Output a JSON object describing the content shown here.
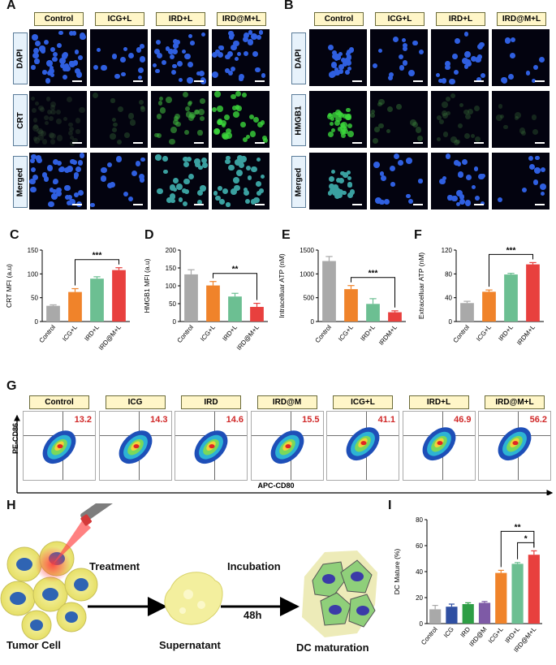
{
  "panels": {
    "A": {
      "letter": "A",
      "headers": [
        "Control",
        "ICG+L",
        "IRD+L",
        "IRD@M+L"
      ],
      "rows": [
        "DAPI",
        "CRT",
        "Merged"
      ]
    },
    "B": {
      "letter": "B",
      "headers": [
        "Control",
        "ICG+L",
        "IRD+L",
        "IRD@M+L"
      ],
      "rows": [
        "DAPI",
        "HMGB1",
        "Merged"
      ]
    },
    "G": {
      "letter": "G",
      "headers": [
        "Control",
        "ICG",
        "IRD",
        "IRD@M",
        "ICG+L",
        "IRD+L",
        "IRD@M+L"
      ],
      "values": [
        "13.2",
        "14.3",
        "14.6",
        "15.5",
        "41.1",
        "46.9",
        "56.2"
      ],
      "ylabel": "PE-CD86",
      "xlabel": "APC-CD80"
    },
    "H": {
      "letter": "H",
      "treatment": "Treatment",
      "incubation": "Incubation",
      "time": "48h",
      "tumor_cell": "Tumor Cell",
      "supernatant": "Supernatant",
      "dc_maturation": "DC maturation"
    }
  },
  "chart_data": [
    {
      "id": "C",
      "letter": "C",
      "type": "bar",
      "ylabel": "CRT MFI (a.u)",
      "categories": [
        "Control",
        "ICG+L",
        "IRD+L",
        "IRD@M+L"
      ],
      "values": [
        33,
        62,
        90,
        108
      ],
      "errors": [
        2,
        7,
        4,
        5
      ],
      "ylim": [
        0,
        150
      ],
      "yticks": [
        "0",
        "50",
        "100",
        "150"
      ],
      "colors": [
        "#a9a9a9",
        "#f0832a",
        "#6cbf92",
        "#e8403e"
      ],
      "sig": "***",
      "sig_from": 1,
      "sig_to": 3
    },
    {
      "id": "D",
      "letter": "D",
      "type": "bar",
      "ylabel": "HMGB1 MFI (a.u)",
      "categories": [
        "Control",
        "ICG+L",
        "IRD+L",
        "IRD@M+L"
      ],
      "values": [
        132,
        101,
        70,
        41
      ],
      "errors": [
        13,
        11,
        9,
        10
      ],
      "ylim": [
        0,
        200
      ],
      "yticks": [
        "0",
        "50",
        "100",
        "150",
        "200"
      ],
      "colors": [
        "#a9a9a9",
        "#f0832a",
        "#6cbf92",
        "#e8403e"
      ],
      "sig": "**",
      "sig_from": 1,
      "sig_to": 3
    },
    {
      "id": "E",
      "letter": "E",
      "type": "bar",
      "ylabel": "Intracelluar ATP (nM)",
      "categories": [
        "Control",
        "ICG+L",
        "IRD+L",
        "IRDM+L"
      ],
      "values": [
        1270,
        680,
        370,
        195
      ],
      "errors": [
        95,
        75,
        110,
        30
      ],
      "ylim": [
        0,
        1500
      ],
      "yticks": [
        "0",
        "500",
        "1000",
        "1500"
      ],
      "colors": [
        "#a9a9a9",
        "#f0832a",
        "#6cbf92",
        "#e8403e"
      ],
      "sig": "***",
      "sig_from": 1,
      "sig_to": 3
    },
    {
      "id": "F",
      "letter": "F",
      "type": "bar",
      "ylabel": "Extracelluar ATP (nM)",
      "categories": [
        "Control",
        "ICG+L",
        "IRD+L",
        "IRDM+L"
      ],
      "values": [
        31,
        50,
        79,
        96
      ],
      "errors": [
        3,
        3,
        2,
        3
      ],
      "ylim": [
        0,
        120
      ],
      "yticks": [
        "0",
        "40",
        "80",
        "120"
      ],
      "colors": [
        "#a9a9a9",
        "#f0832a",
        "#6cbf92",
        "#e8403e"
      ],
      "sig": "***",
      "sig_from": 1,
      "sig_to": 3
    },
    {
      "id": "I",
      "letter": "I",
      "type": "bar",
      "ylabel": "DC Mature (%)",
      "categories": [
        "Control",
        "ICG",
        "IRD",
        "IRD@M",
        "ICG+L",
        "IRD+L",
        "IRD@M+L"
      ],
      "values": [
        11,
        13,
        15,
        16,
        39,
        46,
        53
      ],
      "errors": [
        3,
        2,
        1,
        1,
        2,
        1,
        3
      ],
      "ylim": [
        0,
        80
      ],
      "yticks": [
        "0",
        "20",
        "40",
        "60",
        "80"
      ],
      "colors": [
        "#a9a9a9",
        "#2f4fa2",
        "#2e9e45",
        "#7e5aa6",
        "#f0832a",
        "#6cbf92",
        "#e8403e"
      ],
      "sigs": [
        {
          "label": "**",
          "from": 4,
          "to": 6
        },
        {
          "label": "*",
          "from": 5,
          "to": 6
        }
      ]
    }
  ]
}
